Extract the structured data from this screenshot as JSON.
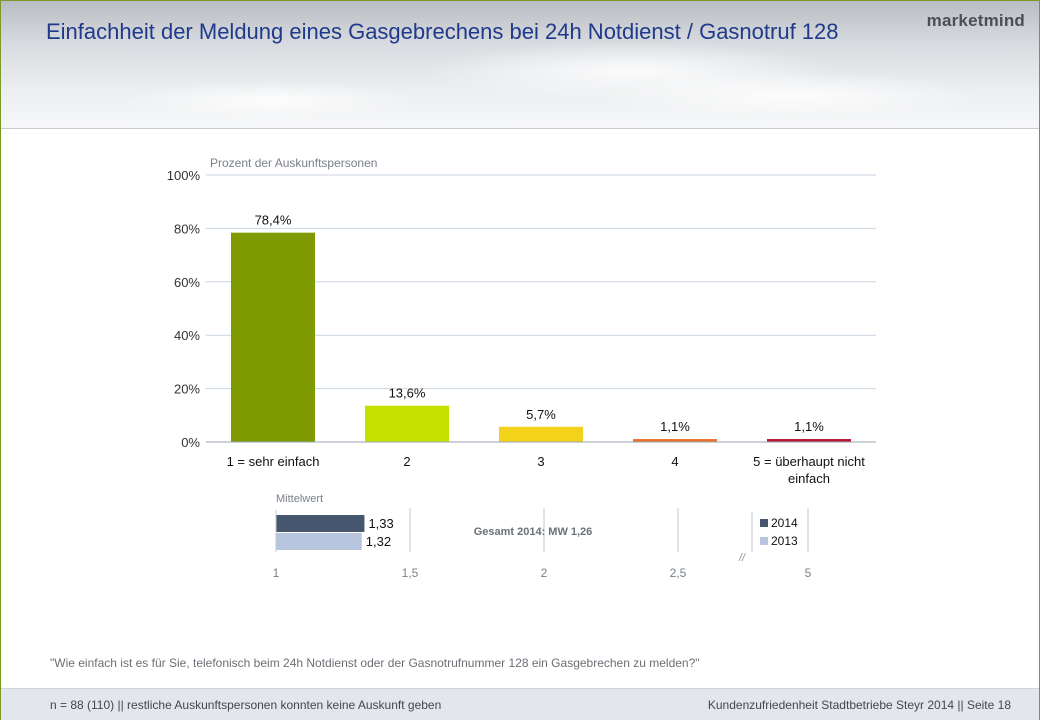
{
  "header": {
    "title": "Einfachheit der Meldung eines Gasgebrechens bei 24h Notdienst / Gasnotruf 128",
    "brand": "marketmind"
  },
  "chart_data": [
    {
      "type": "bar",
      "title": "",
      "ylabel": "Prozent der Auskunftspersonen",
      "xlabel": "",
      "categories": [
        "1 = sehr einfach",
        "2",
        "3",
        "4",
        "5 = überhaupt nicht einfach"
      ],
      "values": [
        78.4,
        13.6,
        5.7,
        1.1,
        1.1
      ],
      "data_labels": [
        "78,4%",
        "13,6%",
        "5,7%",
        "1,1%",
        "1,1%"
      ],
      "colors": [
        "#7f9a00",
        "#c6e000",
        "#f2d21a",
        "#e8702a",
        "#b5142e"
      ],
      "ylim": [
        0,
        100
      ],
      "yticks": [
        "0%",
        "20%",
        "40%",
        "60%",
        "80%",
        "100%"
      ],
      "grid": true
    },
    {
      "type": "bar",
      "orientation": "horizontal",
      "title": "Mittelwert",
      "annotation": "Gesamt 2014: MW 1,26",
      "series": [
        {
          "name": "2014",
          "values": [
            1.33
          ],
          "label": "1,33",
          "color": "#46566f"
        },
        {
          "name": "2013",
          "values": [
            1.32
          ],
          "label": "1,32",
          "color": "#b7c6de"
        }
      ],
      "xlim": [
        1,
        5
      ],
      "xticks": [
        "1",
        "1,5",
        "2",
        "2,5",
        "5"
      ],
      "axis_break": "//",
      "legend": "right"
    }
  ],
  "footnote": "\"Wie einfach ist es für Sie, telefonisch beim 24h Notdienst oder der Gasnotrufnummer 128 ein Gasgebrechen zu melden?\"",
  "footer": {
    "left": "n = 88 (110) || restliche Auskunftspersonen konnten keine Auskunft geben",
    "right": "Kundenzufriedenheit Stadtbetriebe Steyr 2014 || Seite 18"
  }
}
